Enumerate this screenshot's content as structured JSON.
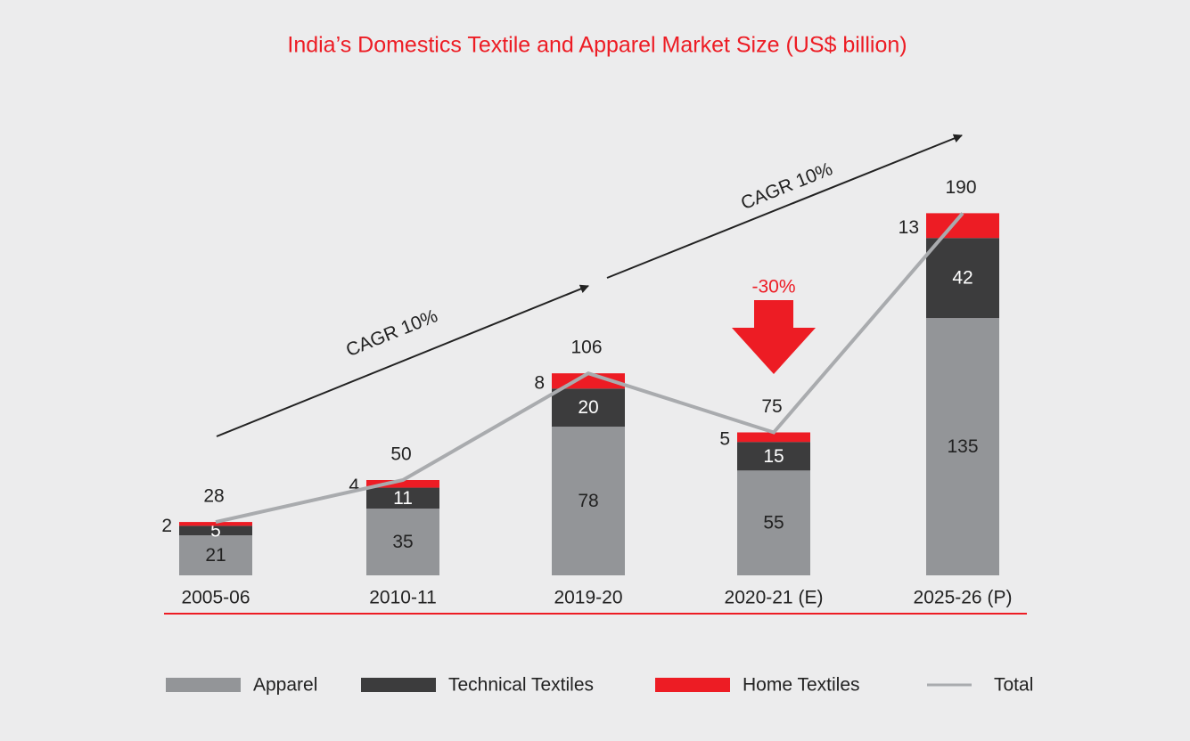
{
  "chart_data": {
    "type": "stacked_bar_line",
    "title": "India’s Domestics Textile and Apparel Market Size (US$ billion)",
    "categories": [
      "2005-06",
      "2010-11",
      "2019-20",
      "2020-21 (E)",
      "2025-26 (P)"
    ],
    "series": [
      {
        "name": "Apparel",
        "color": "#939598",
        "values": [
          21,
          35,
          78,
          55,
          135
        ]
      },
      {
        "name": "Technical Textiles",
        "color": "#3c3c3d",
        "values": [
          5,
          11,
          20,
          15,
          42
        ]
      },
      {
        "name": "Home Textiles",
        "color": "#ed1c24",
        "values": [
          2,
          4,
          8,
          5,
          13
        ]
      },
      {
        "name": "Total",
        "color": "#a9abae",
        "type": "line",
        "values": [
          28,
          50,
          106,
          75,
          190
        ]
      }
    ],
    "annotations": [
      "CAGR 10%",
      "CAGR 10%",
      "-30%"
    ],
    "ylim": [
      0,
      200
    ],
    "legend": "bottom"
  }
}
